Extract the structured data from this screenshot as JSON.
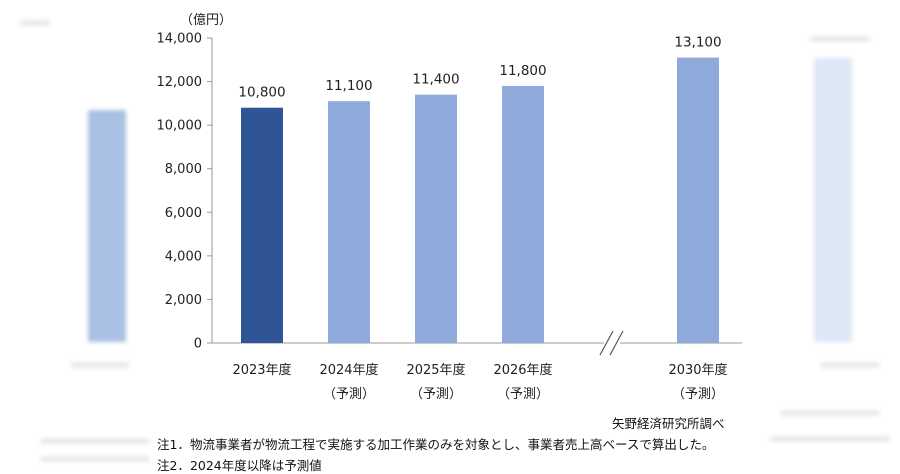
{
  "chart_data": {
    "type": "bar",
    "unit_label": "（億円）",
    "categories": [
      "2023年度",
      "2024年度",
      "2025年度",
      "2026年度",
      "2030年度"
    ],
    "category_sublabels": [
      "",
      "（予測）",
      "（予測）",
      "（予測）",
      "（予測）"
    ],
    "values": [
      10800,
      11100,
      11400,
      11800,
      13100
    ],
    "value_labels": [
      "10,800",
      "11,100",
      "11,400",
      "11,800",
      "13,100"
    ],
    "yticks": [
      "0",
      "2,000",
      "4,000",
      "6,000",
      "8,000",
      "10,000",
      "12,000",
      "14,000"
    ],
    "ylim": [
      0,
      14000
    ],
    "axis_break_between": [
      "2026年度",
      "2030年度"
    ],
    "grid": false,
    "colors": {
      "actual": "#2f5597",
      "forecast": "#8eaadb",
      "axis": "#9a9a9a"
    }
  },
  "source": "矢野経済研究所調べ",
  "notes": [
    "注1．物流事業者が物流工程で実施する加工作業のみを対象とし、事業者売上高ベースで算出した。",
    "注2．2024年度以降は予測値"
  ]
}
